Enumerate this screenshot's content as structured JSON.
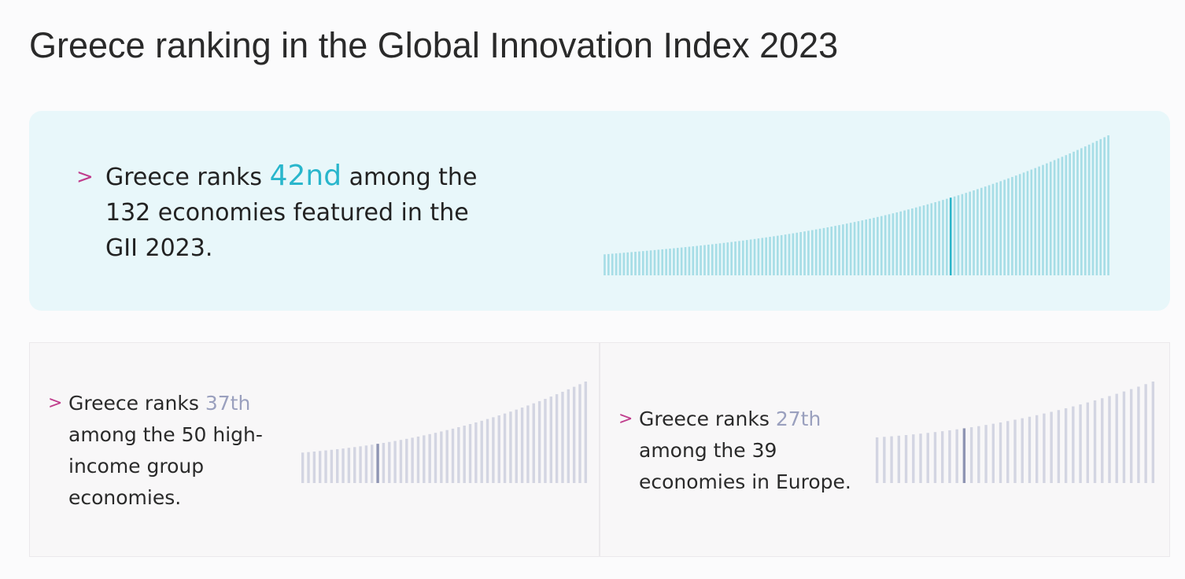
{
  "title": "Greece ranking in the Global Innovation Index 2023",
  "colors": {
    "accent_pink": "#c03c8c",
    "teal_rank": "#29b6cc",
    "teal_bar": "#a6dde6",
    "teal_bar_highlight": "#2bb5c9",
    "grey_bar": "#d3d5e2",
    "grey_bar_highlight": "#8f95b3",
    "grey_rank": "#9aa0be"
  },
  "main": {
    "chevron": ">",
    "prefix": "Greece ranks ",
    "rank": "42nd",
    "suffix": " among the 132 economies featured in the GII 2023."
  },
  "high_income": {
    "chevron": ">",
    "prefix": "Greece ranks ",
    "rank": "37th",
    "suffix": " among the 50 high-income group economies."
  },
  "europe": {
    "chevron": ">",
    "prefix": "Greece ranks ",
    "rank": "27th",
    "suffix": " among the 39 economies in Europe."
  },
  "chart_data": [
    {
      "type": "bar",
      "categories_count": 132,
      "highlight_rank": 42,
      "sorted": "ascending scores left to right; rank 1 at right",
      "value_range": [
        15,
        100
      ]
    },
    {
      "type": "bar",
      "categories_count": 50,
      "highlight_rank": 37,
      "sorted": "ascending scores left to right; rank 1 at right",
      "value_range": [
        30,
        100
      ]
    },
    {
      "type": "bar",
      "categories_count": 39,
      "highlight_rank": 27,
      "sorted": "ascending scores left to right; rank 1 at right",
      "value_range": [
        45,
        100
      ]
    }
  ]
}
